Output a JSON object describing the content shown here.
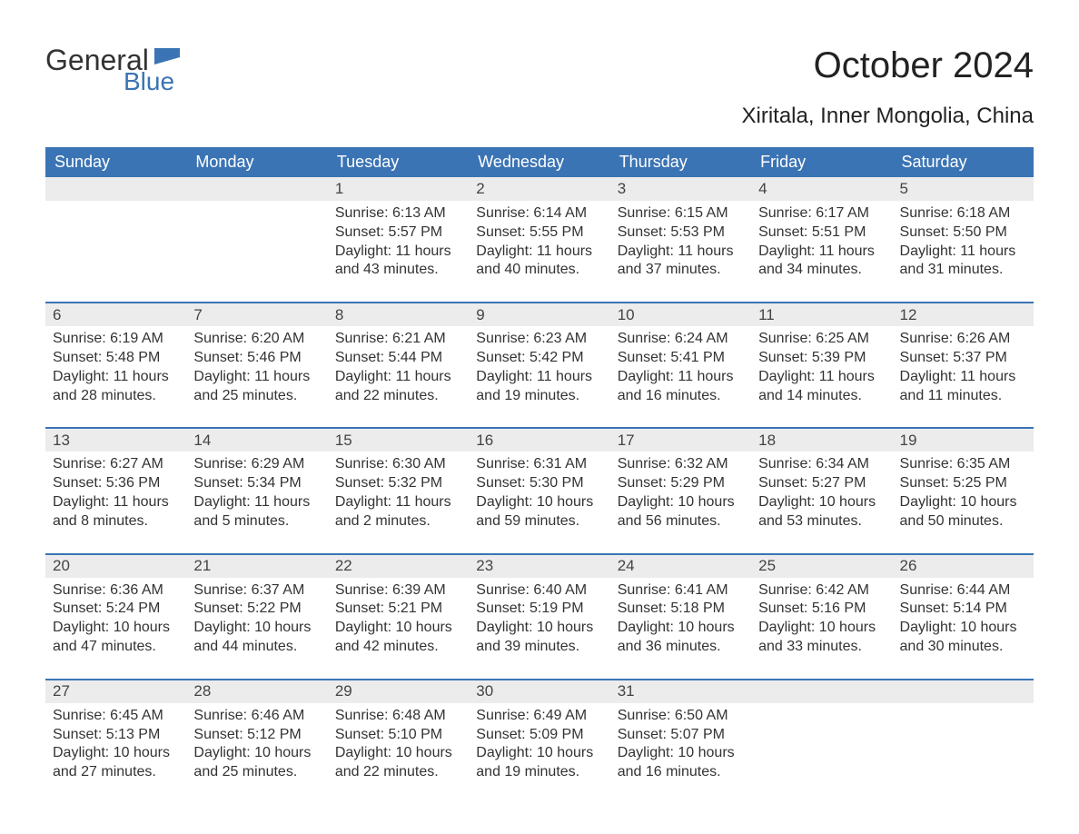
{
  "logo": {
    "word1": "General",
    "word2": "Blue",
    "accent_color": "#3b74b4"
  },
  "title": "October 2024",
  "location": "Xiritala, Inner Mongolia, China",
  "colors": {
    "header_bg": "#3b74b4",
    "header_text": "#ffffff",
    "daynum_bg": "#ececec",
    "border_blue": "#3b74b4",
    "body_text": "#333333",
    "background": "#ffffff"
  },
  "fonts": {
    "title_size": 40,
    "location_size": 24,
    "header_size": 18,
    "daynum_size": 17,
    "detail_size": 16
  },
  "weekdays": [
    "Sunday",
    "Monday",
    "Tuesday",
    "Wednesday",
    "Thursday",
    "Friday",
    "Saturday"
  ],
  "labels": {
    "sunrise": "Sunrise:",
    "sunset": "Sunset:",
    "daylight": "Daylight:"
  },
  "calendar": {
    "type": "table",
    "first_day_column_index": 2,
    "days": [
      {
        "n": 1,
        "sunrise": "6:13 AM",
        "sunset": "5:57 PM",
        "daylight": "11 hours and 43 minutes."
      },
      {
        "n": 2,
        "sunrise": "6:14 AM",
        "sunset": "5:55 PM",
        "daylight": "11 hours and 40 minutes."
      },
      {
        "n": 3,
        "sunrise": "6:15 AM",
        "sunset": "5:53 PM",
        "daylight": "11 hours and 37 minutes."
      },
      {
        "n": 4,
        "sunrise": "6:17 AM",
        "sunset": "5:51 PM",
        "daylight": "11 hours and 34 minutes."
      },
      {
        "n": 5,
        "sunrise": "6:18 AM",
        "sunset": "5:50 PM",
        "daylight": "11 hours and 31 minutes."
      },
      {
        "n": 6,
        "sunrise": "6:19 AM",
        "sunset": "5:48 PM",
        "daylight": "11 hours and 28 minutes."
      },
      {
        "n": 7,
        "sunrise": "6:20 AM",
        "sunset": "5:46 PM",
        "daylight": "11 hours and 25 minutes."
      },
      {
        "n": 8,
        "sunrise": "6:21 AM",
        "sunset": "5:44 PM",
        "daylight": "11 hours and 22 minutes."
      },
      {
        "n": 9,
        "sunrise": "6:23 AM",
        "sunset": "5:42 PM",
        "daylight": "11 hours and 19 minutes."
      },
      {
        "n": 10,
        "sunrise": "6:24 AM",
        "sunset": "5:41 PM",
        "daylight": "11 hours and 16 minutes."
      },
      {
        "n": 11,
        "sunrise": "6:25 AM",
        "sunset": "5:39 PM",
        "daylight": "11 hours and 14 minutes."
      },
      {
        "n": 12,
        "sunrise": "6:26 AM",
        "sunset": "5:37 PM",
        "daylight": "11 hours and 11 minutes."
      },
      {
        "n": 13,
        "sunrise": "6:27 AM",
        "sunset": "5:36 PM",
        "daylight": "11 hours and 8 minutes."
      },
      {
        "n": 14,
        "sunrise": "6:29 AM",
        "sunset": "5:34 PM",
        "daylight": "11 hours and 5 minutes."
      },
      {
        "n": 15,
        "sunrise": "6:30 AM",
        "sunset": "5:32 PM",
        "daylight": "11 hours and 2 minutes."
      },
      {
        "n": 16,
        "sunrise": "6:31 AM",
        "sunset": "5:30 PM",
        "daylight": "10 hours and 59 minutes."
      },
      {
        "n": 17,
        "sunrise": "6:32 AM",
        "sunset": "5:29 PM",
        "daylight": "10 hours and 56 minutes."
      },
      {
        "n": 18,
        "sunrise": "6:34 AM",
        "sunset": "5:27 PM",
        "daylight": "10 hours and 53 minutes."
      },
      {
        "n": 19,
        "sunrise": "6:35 AM",
        "sunset": "5:25 PM",
        "daylight": "10 hours and 50 minutes."
      },
      {
        "n": 20,
        "sunrise": "6:36 AM",
        "sunset": "5:24 PM",
        "daylight": "10 hours and 47 minutes."
      },
      {
        "n": 21,
        "sunrise": "6:37 AM",
        "sunset": "5:22 PM",
        "daylight": "10 hours and 44 minutes."
      },
      {
        "n": 22,
        "sunrise": "6:39 AM",
        "sunset": "5:21 PM",
        "daylight": "10 hours and 42 minutes."
      },
      {
        "n": 23,
        "sunrise": "6:40 AM",
        "sunset": "5:19 PM",
        "daylight": "10 hours and 39 minutes."
      },
      {
        "n": 24,
        "sunrise": "6:41 AM",
        "sunset": "5:18 PM",
        "daylight": "10 hours and 36 minutes."
      },
      {
        "n": 25,
        "sunrise": "6:42 AM",
        "sunset": "5:16 PM",
        "daylight": "10 hours and 33 minutes."
      },
      {
        "n": 26,
        "sunrise": "6:44 AM",
        "sunset": "5:14 PM",
        "daylight": "10 hours and 30 minutes."
      },
      {
        "n": 27,
        "sunrise": "6:45 AM",
        "sunset": "5:13 PM",
        "daylight": "10 hours and 27 minutes."
      },
      {
        "n": 28,
        "sunrise": "6:46 AM",
        "sunset": "5:12 PM",
        "daylight": "10 hours and 25 minutes."
      },
      {
        "n": 29,
        "sunrise": "6:48 AM",
        "sunset": "5:10 PM",
        "daylight": "10 hours and 22 minutes."
      },
      {
        "n": 30,
        "sunrise": "6:49 AM",
        "sunset": "5:09 PM",
        "daylight": "10 hours and 19 minutes."
      },
      {
        "n": 31,
        "sunrise": "6:50 AM",
        "sunset": "5:07 PM",
        "daylight": "10 hours and 16 minutes."
      }
    ]
  }
}
